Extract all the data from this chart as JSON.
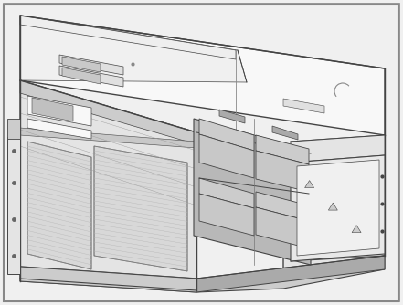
{
  "figure_width": 4.41,
  "figure_height": 3.34,
  "dpi": 100,
  "bg": "#f0f0f0",
  "white": "#f8f8f8",
  "light_gray": "#e4e4e4",
  "mid_gray": "#cccccc",
  "dark_gray": "#aaaaaa",
  "very_dark": "#888888",
  "line": "#444444",
  "border": "#888888"
}
